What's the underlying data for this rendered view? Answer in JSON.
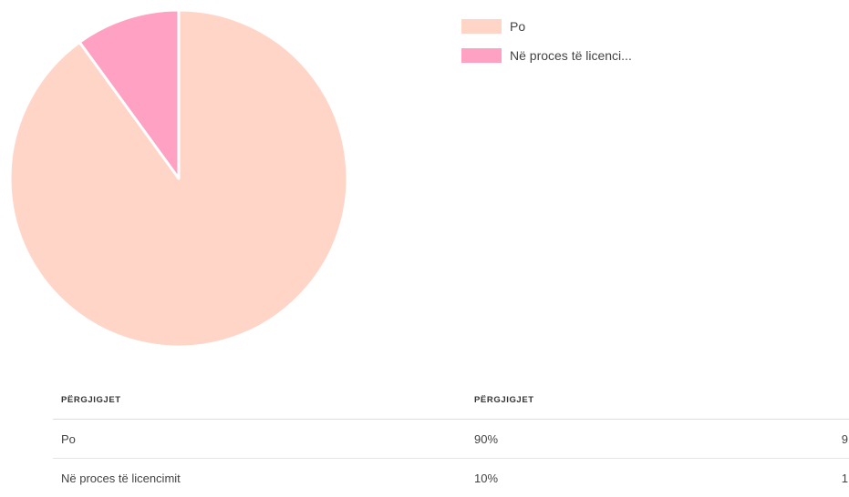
{
  "chart_data": {
    "type": "pie",
    "categories": [
      "Po",
      "Në proces të licencimit"
    ],
    "values": [
      9,
      1
    ],
    "colors": [
      "#ffd5c8",
      "#ffa1c3"
    ],
    "legend_labels": [
      "Po",
      "Në proces të licenci..."
    ],
    "legend_position": "top-right"
  },
  "table": {
    "headers": [
      "PËRGJIGJET",
      "PËRGJIGJET",
      ""
    ],
    "rows": [
      {
        "label": "Po",
        "percent": "90%",
        "count": "9"
      },
      {
        "label": "Në proces të licencimit",
        "percent": "10%",
        "count": "1"
      }
    ]
  }
}
